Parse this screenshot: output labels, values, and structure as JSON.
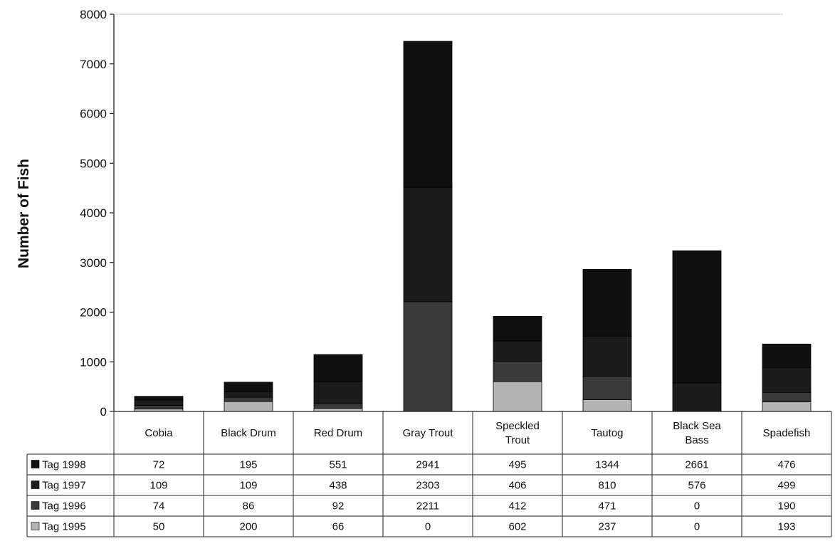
{
  "chart_data": {
    "type": "bar",
    "stacked": true,
    "title": "",
    "xlabel": "",
    "ylabel": "Number of Fish",
    "ylim": [
      0,
      8000
    ],
    "yticks": [
      0,
      1000,
      2000,
      3000,
      4000,
      5000,
      6000,
      7000,
      8000
    ],
    "grid": false,
    "legend_placement": "data-table-left",
    "categories": [
      [
        "Cobia"
      ],
      [
        "Black Drum"
      ],
      [
        "Red Drum"
      ],
      [
        "Gray Trout"
      ],
      [
        "Speckled",
        "Trout"
      ],
      [
        "Tautog"
      ],
      [
        "Black Sea",
        "Bass"
      ],
      [
        "Spadefish"
      ]
    ],
    "series": [
      {
        "name": "Tag 1998",
        "color": "#101010",
        "values": [
          72,
          195,
          551,
          2941,
          495,
          1344,
          2661,
          476
        ]
      },
      {
        "name": "Tag 1997",
        "color": "#1c1c1c",
        "values": [
          109,
          109,
          438,
          2303,
          406,
          810,
          576,
          499
        ]
      },
      {
        "name": "Tag 1996",
        "color": "#3a3a3a",
        "values": [
          74,
          86,
          92,
          2211,
          412,
          471,
          0,
          190
        ]
      },
      {
        "name": "Tag 1995",
        "color": "#b4b4b4",
        "values": [
          50,
          200,
          66,
          0,
          602,
          237,
          0,
          193
        ]
      }
    ]
  }
}
